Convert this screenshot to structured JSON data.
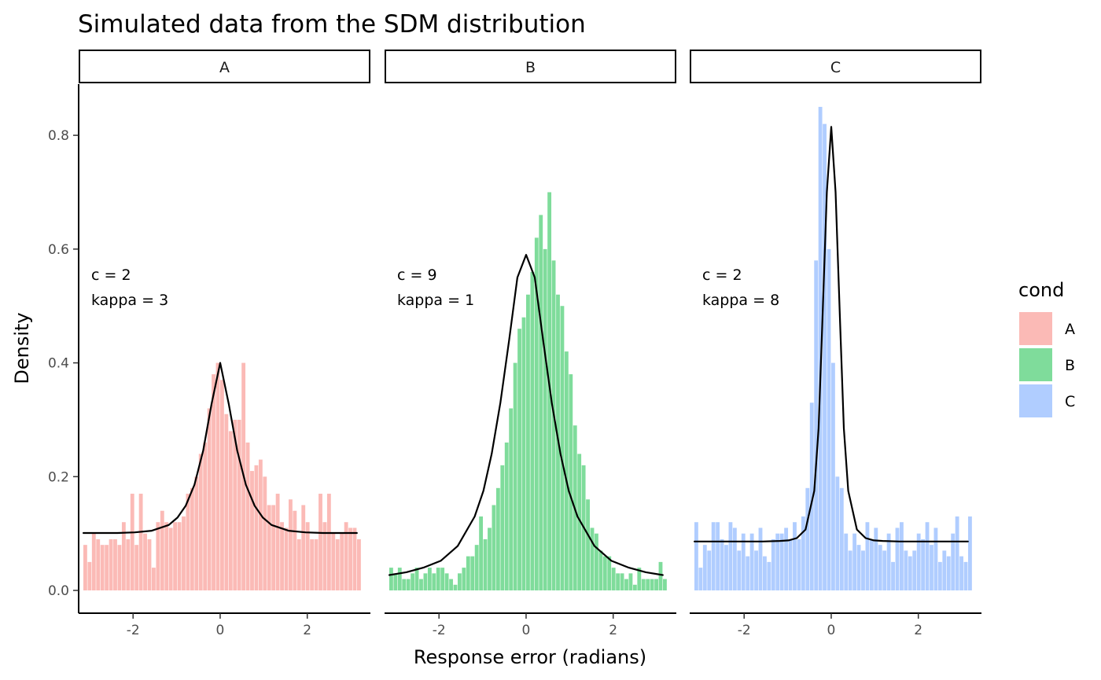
{
  "chart_data": {
    "type": "bar",
    "title": "Simulated data from the SDM distribution",
    "xlabel": "Response error (radians)",
    "ylabel": "Density",
    "xlim": [
      -3.25,
      3.45
    ],
    "ylim": [
      -0.04,
      0.89
    ],
    "x_ticks": [
      -2,
      0,
      2
    ],
    "x_tick_labels": [
      "-2",
      "0",
      "2"
    ],
    "y_ticks": [
      0.0,
      0.2,
      0.4,
      0.6,
      0.8
    ],
    "y_tick_labels": [
      "0.0",
      "0.2",
      "0.4",
      "0.6",
      "0.8"
    ],
    "grid": false,
    "legend": {
      "title": "cond",
      "position": "right",
      "entries": [
        {
          "label": "A",
          "color": "#F8766D"
        },
        {
          "label": "B",
          "color": "#00BA38"
        },
        {
          "label": "C",
          "color": "#619CFF"
        }
      ]
    },
    "bin_width": 0.0982,
    "bin_start": -3.1416,
    "fill_opacity": 0.5,
    "curve_color": "#000000",
    "panels": [
      {
        "name": "A",
        "strip": "A",
        "color": "#F8766D",
        "annotation": [
          "c = 2",
          "kappa = 3"
        ],
        "params": {
          "c": 2,
          "kappa": 3
        },
        "values": [
          0.08,
          0.05,
          0.1,
          0.09,
          0.08,
          0.08,
          0.09,
          0.09,
          0.08,
          0.12,
          0.09,
          0.17,
          0.08,
          0.17,
          0.1,
          0.09,
          0.04,
          0.12,
          0.14,
          0.12,
          0.11,
          0.12,
          0.12,
          0.13,
          0.17,
          0.18,
          0.2,
          0.24,
          0.26,
          0.32,
          0.38,
          0.4,
          0.37,
          0.31,
          0.28,
          0.3,
          0.3,
          0.4,
          0.26,
          0.21,
          0.22,
          0.23,
          0.2,
          0.15,
          0.15,
          0.17,
          0.12,
          0.11,
          0.16,
          0.14,
          0.09,
          0.15,
          0.12,
          0.09,
          0.09,
          0.17,
          0.12,
          0.17,
          0.1,
          0.09,
          0.1,
          0.12,
          0.11,
          0.11,
          0.09
        ],
        "curve": {
          "x": [
            -3.14,
            -2.75,
            -2.36,
            -1.96,
            -1.57,
            -1.18,
            -0.98,
            -0.79,
            -0.59,
            -0.39,
            -0.2,
            0.0,
            0.2,
            0.39,
            0.59,
            0.79,
            0.98,
            1.18,
            1.57,
            1.96,
            2.36,
            2.75,
            3.14
          ],
          "y": [
            0.101,
            0.101,
            0.101,
            0.102,
            0.105,
            0.115,
            0.128,
            0.149,
            0.186,
            0.246,
            0.327,
            0.4,
            0.327,
            0.246,
            0.186,
            0.149,
            0.128,
            0.115,
            0.105,
            0.102,
            0.101,
            0.101,
            0.101
          ]
        }
      },
      {
        "name": "B",
        "strip": "B",
        "color": "#00BA38",
        "annotation": [
          "c = 9",
          "kappa = 1"
        ],
        "params": {
          "c": 9,
          "kappa": 1
        },
        "values": [
          0.04,
          0.03,
          0.04,
          0.02,
          0.02,
          0.03,
          0.04,
          0.02,
          0.03,
          0.04,
          0.03,
          0.04,
          0.04,
          0.03,
          0.02,
          0.01,
          0.03,
          0.04,
          0.06,
          0.06,
          0.08,
          0.13,
          0.09,
          0.11,
          0.15,
          0.18,
          0.22,
          0.26,
          0.32,
          0.4,
          0.46,
          0.48,
          0.52,
          0.56,
          0.62,
          0.66,
          0.6,
          0.7,
          0.58,
          0.52,
          0.5,
          0.42,
          0.38,
          0.29,
          0.24,
          0.22,
          0.16,
          0.11,
          0.1,
          0.07,
          0.06,
          0.06,
          0.04,
          0.03,
          0.03,
          0.02,
          0.03,
          0.01,
          0.04,
          0.02,
          0.02,
          0.02,
          0.02,
          0.05,
          0.02
        ],
        "curve": {
          "x": [
            -3.14,
            -2.75,
            -2.36,
            -1.96,
            -1.57,
            -1.18,
            -0.98,
            -0.79,
            -0.59,
            -0.39,
            -0.2,
            0.0,
            0.2,
            0.39,
            0.59,
            0.79,
            0.98,
            1.18,
            1.57,
            1.96,
            2.36,
            2.75,
            3.14
          ],
          "y": [
            0.027,
            0.032,
            0.04,
            0.052,
            0.078,
            0.13,
            0.175,
            0.24,
            0.33,
            0.44,
            0.55,
            0.59,
            0.55,
            0.44,
            0.33,
            0.24,
            0.175,
            0.13,
            0.078,
            0.052,
            0.04,
            0.032,
            0.027
          ]
        }
      },
      {
        "name": "C",
        "strip": "C",
        "color": "#619CFF",
        "annotation": [
          "c = 2",
          "kappa = 8"
        ],
        "params": {
          "c": 2,
          "kappa": 8
        },
        "values": [
          0.12,
          0.04,
          0.08,
          0.07,
          0.12,
          0.12,
          0.09,
          0.08,
          0.12,
          0.11,
          0.07,
          0.1,
          0.06,
          0.1,
          0.07,
          0.11,
          0.06,
          0.05,
          0.09,
          0.1,
          0.1,
          0.11,
          0.09,
          0.12,
          0.09,
          0.13,
          0.18,
          0.33,
          0.58,
          0.85,
          0.82,
          0.6,
          0.4,
          0.2,
          0.18,
          0.1,
          0.07,
          0.1,
          0.08,
          0.07,
          0.12,
          0.09,
          0.11,
          0.08,
          0.07,
          0.1,
          0.05,
          0.11,
          0.12,
          0.07,
          0.06,
          0.07,
          0.1,
          0.09,
          0.12,
          0.08,
          0.11,
          0.05,
          0.07,
          0.06,
          0.1,
          0.13,
          0.06,
          0.05,
          0.13
        ],
        "curve": {
          "x": [
            -3.14,
            -2.36,
            -1.57,
            -1.18,
            -0.98,
            -0.79,
            -0.59,
            -0.39,
            -0.29,
            -0.2,
            -0.1,
            0.0,
            0.1,
            0.2,
            0.29,
            0.39,
            0.59,
            0.79,
            0.98,
            1.18,
            1.57,
            2.36,
            3.14
          ],
          "y": [
            0.086,
            0.086,
            0.086,
            0.087,
            0.088,
            0.092,
            0.107,
            0.175,
            0.285,
            0.48,
            0.7,
            0.815,
            0.7,
            0.48,
            0.285,
            0.175,
            0.107,
            0.092,
            0.088,
            0.087,
            0.086,
            0.086,
            0.086
          ]
        }
      }
    ]
  }
}
